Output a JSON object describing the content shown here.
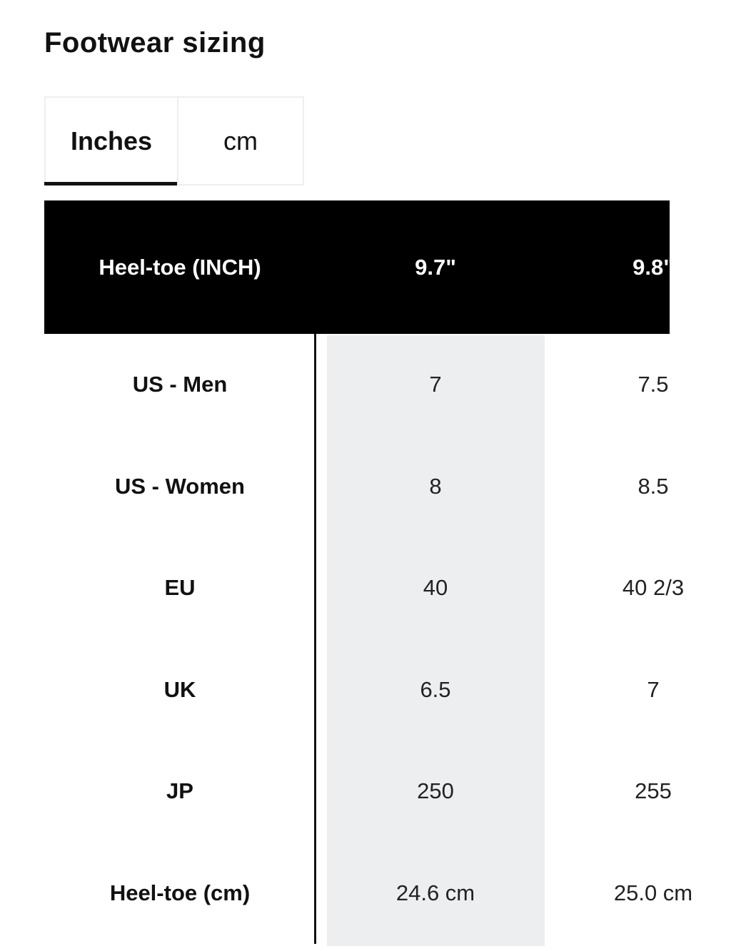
{
  "header": {
    "title": "Footwear sizing"
  },
  "tabs": [
    {
      "label": "Inches",
      "selected": true
    },
    {
      "label": "cm",
      "selected": false
    }
  ],
  "table": {
    "header": [
      "Heel-toe (INCH)",
      "9.7\"",
      "9.8\""
    ],
    "rows": [
      [
        "US - Men",
        "7",
        "7.5"
      ],
      [
        "US - Women",
        "8",
        "8.5"
      ],
      [
        "EU",
        "40",
        "40 2/3"
      ],
      [
        "UK",
        "6.5",
        "7"
      ],
      [
        "JP",
        "250",
        "255"
      ],
      [
        "Heel-toe (cm)",
        "24.6 cm",
        "25.0 cm"
      ]
    ]
  }
}
